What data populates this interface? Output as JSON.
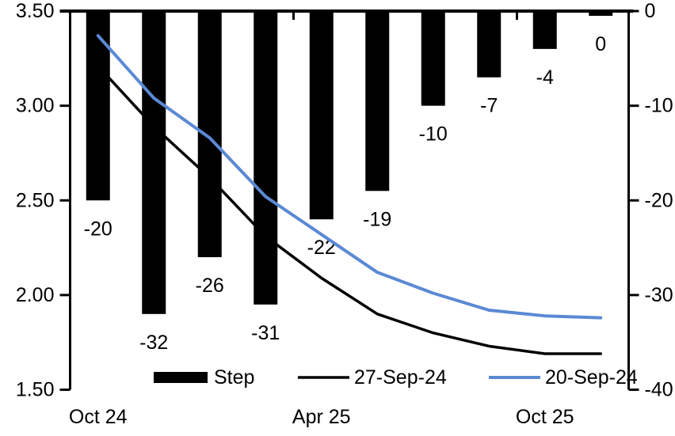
{
  "chart_data": {
    "type": "combo",
    "subtype": "bar+line",
    "title": "",
    "n_categories": 10,
    "x_tick_labels": [
      {
        "index": 0,
        "label": "Oct 24"
      },
      {
        "index": 4,
        "label": "Apr 25"
      },
      {
        "index": 8,
        "label": "Oct 25"
      }
    ],
    "bar_series": {
      "name": "Step",
      "axis": "right",
      "color": "#000000",
      "values": [
        -20,
        -32,
        -26,
        -31,
        -22,
        -19,
        -10,
        -7,
        -4,
        -0.5
      ],
      "data_labels": [
        "-20",
        "-32",
        "-26",
        "-31",
        "-22",
        "-19",
        "-10",
        "-7",
        "-4",
        "0"
      ]
    },
    "line_series": [
      {
        "name": "27-Sep-24",
        "axis": "left",
        "color": "#000000",
        "width": 3.5,
        "values": [
          3.21,
          2.89,
          2.62,
          2.31,
          2.09,
          1.9,
          1.8,
          1.73,
          1.69,
          1.69
        ]
      },
      {
        "name": "20-Sep-24",
        "axis": "left",
        "color": "#5B89D4",
        "width": 4,
        "values": [
          3.37,
          3.04,
          2.83,
          2.52,
          2.32,
          2.12,
          2.01,
          1.92,
          1.89,
          1.88
        ]
      }
    ],
    "left_axis": {
      "min": 1.5,
      "max": 3.5,
      "ticks": [
        3.5,
        3.0,
        2.5,
        2.0,
        1.5
      ],
      "tick_labels": [
        "3.50",
        "3.00",
        "2.50",
        "2.00",
        "1.50"
      ]
    },
    "right_axis": {
      "min": -40,
      "max": 0,
      "ticks": [
        0,
        -10,
        -20,
        -30,
        -40
      ],
      "tick_labels": [
        "0",
        "-10",
        "-20",
        "-30",
        "-40"
      ]
    },
    "category_axis": {
      "position": "top",
      "tick_boundaries": [
        0,
        4,
        8
      ]
    },
    "legend": {
      "position": "bottom",
      "items": [
        {
          "label": "Step",
          "swatch": "bar",
          "color": "#000000"
        },
        {
          "label": "27-Sep-24",
          "swatch": "line",
          "color": "#000000"
        },
        {
          "label": "20-Sep-24",
          "swatch": "line",
          "color": "#5B89D4"
        }
      ]
    },
    "colors": {
      "axis": "#000000",
      "background": "#FFFFFF",
      "text": "#000000"
    },
    "grid": "off"
  }
}
